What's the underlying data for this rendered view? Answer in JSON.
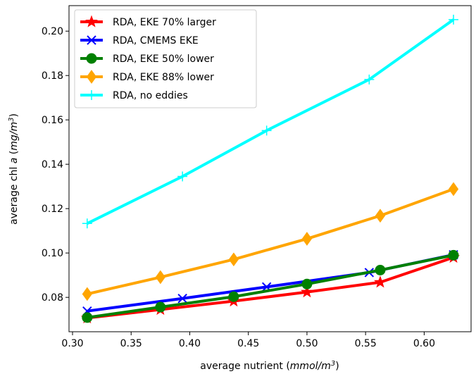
{
  "chart_data": {
    "type": "line",
    "title": "",
    "xlabel_main": "average nutrient (",
    "xlabel_unit": "mmol/m",
    "xlabel_sup": "3",
    "xlabel_end": ")",
    "ylabel_main": "average chl ",
    "ylabel_italic_a": "a",
    "ylabel_open": " (",
    "ylabel_unit": "mg/m",
    "ylabel_sup": "3",
    "ylabel_end": ")",
    "xlim": [
      0.297,
      0.64
    ],
    "ylim": [
      0.0645,
      0.2115
    ],
    "xticks": [
      0.3,
      0.35,
      0.4,
      0.45,
      0.5,
      0.55,
      0.6
    ],
    "xtick_labels": [
      "0.30",
      "0.35",
      "0.40",
      "0.45",
      "0.50",
      "0.55",
      "0.60"
    ],
    "yticks": [
      0.08,
      0.1,
      0.12,
      0.14,
      0.16,
      0.18,
      0.2
    ],
    "ytick_labels": [
      "0.08",
      "0.10",
      "0.12",
      "0.14",
      "0.16",
      "0.18",
      "0.20"
    ],
    "grid": false,
    "legend_position": "top-left",
    "series": [
      {
        "name": "RDA, EKE 70% larger",
        "color": "#ff0000",
        "marker": "star",
        "x": [
          0.3125,
          0.375,
          0.4375,
          0.5,
          0.5625,
          0.625
        ],
        "y": [
          0.0707,
          0.0745,
          0.0783,
          0.0824,
          0.0868,
          0.098
        ]
      },
      {
        "name": "RDA, CMEMS EKE",
        "color": "#0000ff",
        "marker": "x",
        "x": [
          0.3125,
          0.3938,
          0.4656,
          0.5531,
          0.625
        ],
        "y": [
          0.0738,
          0.0795,
          0.0847,
          0.0912,
          0.0992
        ]
      },
      {
        "name": "RDA, EKE 50% lower",
        "color": "#008000",
        "marker": "circle",
        "x": [
          0.3125,
          0.375,
          0.4375,
          0.5,
          0.5625,
          0.625
        ],
        "y": [
          0.0709,
          0.0756,
          0.0803,
          0.086,
          0.0923,
          0.099
        ]
      },
      {
        "name": "RDA, EKE 88% lower",
        "color": "#ffa500",
        "marker": "diamond",
        "x": [
          0.3125,
          0.375,
          0.4375,
          0.5,
          0.5625,
          0.625
        ],
        "y": [
          0.0815,
          0.0891,
          0.0971,
          0.1064,
          0.1168,
          0.1288
        ]
      },
      {
        "name": "RDA, no eddies",
        "color": "#00ffff",
        "marker": "plus",
        "x": [
          0.3125,
          0.3938,
          0.4656,
          0.5531,
          0.625
        ],
        "y": [
          0.1133,
          0.1345,
          0.1552,
          0.1782,
          0.2052
        ]
      }
    ]
  }
}
